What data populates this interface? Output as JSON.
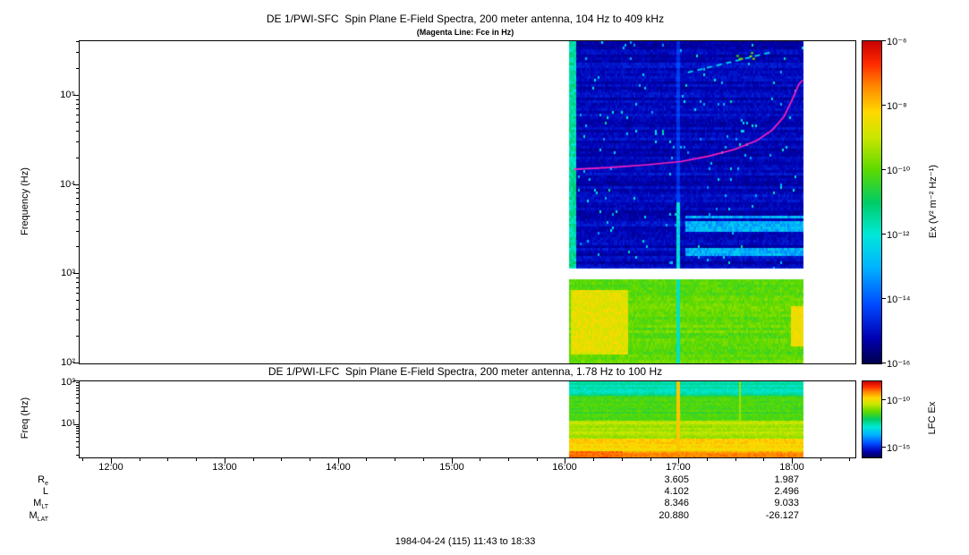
{
  "footer": "1984-04-24 (115) 11:43 to 18:33",
  "ephemeris": {
    "rows": [
      {
        "label_main": "R",
        "label_sub": "e",
        "v1": "3.605",
        "v2": "1.987"
      },
      {
        "label_main": "L",
        "label_sub": "",
        "v1": "4.102",
        "v2": "2.496"
      },
      {
        "label_main": "M",
        "label_sub": "LT",
        "v1": "8.346",
        "v2": "9.033"
      },
      {
        "label_main": "M",
        "label_sub": "LAT",
        "v1": "20.880",
        "v2": "-26.127"
      }
    ]
  },
  "chart_data": [
    {
      "type": "heatmap",
      "instrument": "SFC",
      "title": "DE 1/PWI-SFC  Spin Plane E-Field Spectra, 200 meter antenna, 104 Hz to 409 kHz",
      "subtitle": "(Magenta Line: Fce in Hz)",
      "ylabel": "Frequency (Hz)",
      "y_scale": "log",
      "y_range_hz": [
        100,
        409600
      ],
      "y_ticks": [
        "10²",
        "10³",
        "10⁴",
        "10⁵"
      ],
      "x_ticks": [
        "12:00",
        "13:00",
        "14:00",
        "15:00",
        "16:00",
        "17:00",
        "18:00"
      ],
      "x_minutes": {
        "start": 703,
        "end": 1113
      },
      "time_range": "11:43 to 18:33",
      "data_window": "16:02 to 18:05",
      "gap_hz": [
        880,
        1180
      ],
      "grid": false,
      "palette": [
        [
          0,
          "#00004d"
        ],
        [
          0.08,
          "#0000b4"
        ],
        [
          0.18,
          "#0048ff"
        ],
        [
          0.3,
          "#00b4ff"
        ],
        [
          0.4,
          "#00e8d8"
        ],
        [
          0.5,
          "#00cc66"
        ],
        [
          0.6,
          "#5cd900"
        ],
        [
          0.7,
          "#c8e600"
        ],
        [
          0.78,
          "#ffd800"
        ],
        [
          0.86,
          "#ff8800"
        ],
        [
          0.93,
          "#ff2a00"
        ],
        [
          1,
          "#c80000"
        ]
      ],
      "colorbar": {
        "label": "Ex (V² m⁻² Hz⁻¹)",
        "ticks": [
          "10⁻⁶",
          "10⁻⁸",
          "10⁻¹⁰",
          "10⁻¹²",
          "10⁻¹⁴",
          "10⁻¹⁶"
        ],
        "range_exp": [
          -6,
          -16
        ],
        "tick_exps": [
          -6,
          -8,
          -10,
          -12,
          -14,
          -16
        ]
      },
      "fce_line": {
        "color": "#ff1fbf",
        "points": [
          [
            0.637,
            15000
          ],
          [
            0.683,
            15700
          ],
          [
            0.729,
            16800
          ],
          [
            0.775,
            18300
          ],
          [
            0.81,
            21000
          ],
          [
            0.844,
            25000
          ],
          [
            0.873,
            31500
          ],
          [
            0.893,
            41500
          ],
          [
            0.908,
            58500
          ],
          [
            0.919,
            92000
          ],
          [
            0.927,
            134000
          ],
          [
            0.932,
            150000
          ]
        ]
      },
      "texture": {
        "data_t": [
          0.632,
          0.932
        ],
        "upper_v": 0.09,
        "lower_v": 0.61,
        "stripe_v": 0.45,
        "burst_v": 0.38,
        "left_stripe_t": [
          0.632,
          0.64
        ],
        "burst_t": 0.771,
        "cyan_band_hz": [
          1500,
          4500
        ],
        "cyan_band_t0": 0.78,
        "diag_streak": {
          "t": [
            0.784,
            0.893
          ],
          "y_rel": [
            35,
            12
          ]
        },
        "yellow_patch": {
          "t": [
            0.632,
            0.705
          ],
          "hz": [
            130,
            650
          ],
          "v": 0.74
        },
        "right_patch": {
          "t": [
            0.915,
            0.932
          ],
          "hz": [
            160,
            450
          ],
          "v": 0.76
        }
      }
    },
    {
      "type": "heatmap",
      "instrument": "LFC",
      "title": "DE 1/PWI-LFC  Spin Plane E-Field Spectra, 200 meter antenna, 1.78 Hz to 100 Hz",
      "ylabel": "Freq (Hz)",
      "y_scale": "log",
      "y_range_hz": [
        1.78,
        100
      ],
      "y_ticks": [
        "10¹",
        "10²"
      ],
      "colorbar": {
        "label": "LFC Ex",
        "ticks": [
          "10⁻¹⁰",
          "10⁻¹⁵"
        ],
        "range_exp": [
          -8,
          -16
        ],
        "tick_exps": [
          -10,
          -15
        ]
      },
      "texture": {
        "data_t": [
          0.632,
          0.932
        ],
        "rows": [
          {
            "frac": [
              0,
              0.18
            ],
            "v": 0.44
          },
          {
            "frac": [
              0.18,
              0.5
            ],
            "v": 0.58
          },
          {
            "frac": [
              0.5,
              0.75
            ],
            "v": 0.68
          },
          {
            "frac": [
              0.75,
              0.9
            ],
            "v": 0.78
          },
          {
            "frac": [
              0.9,
              1.01
            ],
            "v": 0.85
          }
        ],
        "vstripe1": {
          "t": 0.771,
          "v": 0.8
        },
        "vstripe2": {
          "t": 0.85,
          "v": 0.66,
          "frac_max": 0.5
        },
        "bottom_left": {
          "t_max": 0.7,
          "frac_min": 0.9,
          "v": 0.88
        }
      }
    }
  ]
}
